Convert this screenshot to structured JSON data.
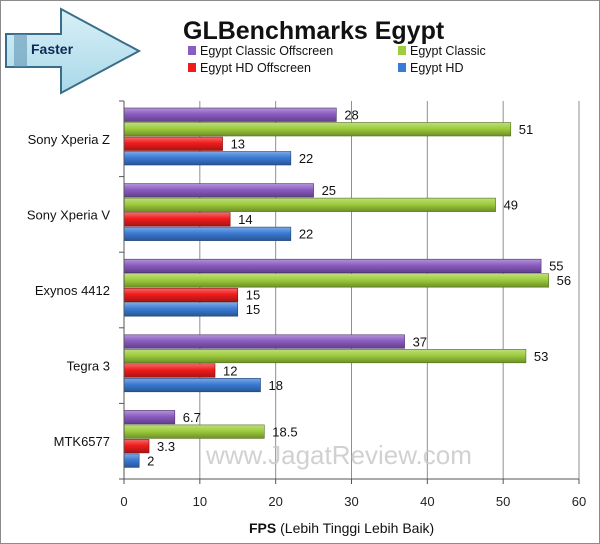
{
  "badge": {
    "label": "Faster"
  },
  "watermark": "www.JagatReview.com",
  "chart_data": {
    "type": "bar",
    "orientation": "horizontal",
    "title": "GLBenchmarks Egypt",
    "xlabel_bold": "FPS",
    "xlabel_rest": " (Lebih Tinggi Lebih Baik)",
    "xlim": [
      0,
      60
    ],
    "x_ticks": [
      0,
      10,
      20,
      30,
      40,
      50,
      60
    ],
    "grid": "vertical-major",
    "legend_position": "top",
    "categories": [
      "Sony Xperia Z",
      "Sony Xperia V",
      "Exynos 4412",
      "Tegra 3",
      "MTK6577"
    ],
    "series": [
      {
        "name": "Egypt Classic Offscreen",
        "color": "#8a5cc2",
        "values": [
          28,
          25,
          55,
          37,
          6.7
        ],
        "labels": [
          "28",
          "25",
          "55",
          "37",
          "6.7"
        ]
      },
      {
        "name": "Egypt Classic",
        "color": "#9dcc3c",
        "values": [
          51,
          49,
          56,
          53,
          18.5
        ],
        "labels": [
          "51",
          "49",
          "56",
          "53",
          "18.5"
        ]
      },
      {
        "name": "Egypt HD Offscreen",
        "color": "#f01c1c",
        "values": [
          13,
          14,
          15,
          12,
          3.3
        ],
        "labels": [
          "13",
          "14",
          "15",
          "12",
          "3.3"
        ]
      },
      {
        "name": "Egypt HD",
        "color": "#3a7bd5",
        "values": [
          22,
          22,
          15,
          18,
          2
        ],
        "labels": [
          "22",
          "22",
          "15",
          "18",
          "2"
        ]
      }
    ]
  }
}
